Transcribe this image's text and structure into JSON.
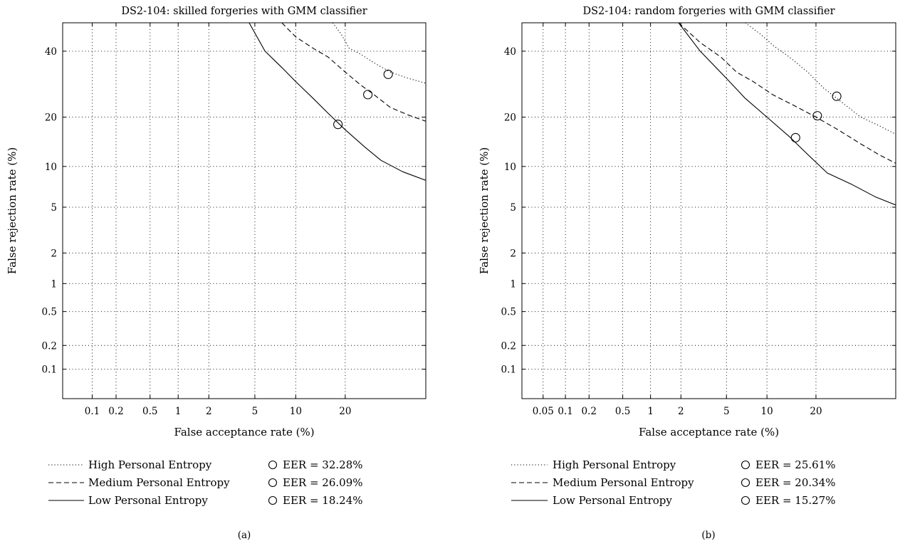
{
  "chart_data": [
    {
      "type": "line",
      "panel_label": "(a)",
      "title": "DS2-104: skilled forgeries with GMM classifier",
      "xlabel": "False acceptance rate (%)",
      "ylabel": "False rejection rate (%)",
      "x_scale": "normal-deviate",
      "y_scale": "normal-deviate",
      "xlim": [
        0.04,
        45
      ],
      "ylim": [
        0.04,
        50
      ],
      "x_ticks": [
        0.1,
        0.2,
        0.5,
        1,
        2,
        5,
        10,
        20
      ],
      "x_tick_labels": [
        "0.1",
        "0.2",
        "0.5",
        "1",
        "2",
        "5",
        "10",
        "20"
      ],
      "y_ticks": [
        0.1,
        0.2,
        0.5,
        1,
        2,
        5,
        10,
        20,
        40
      ],
      "y_tick_labels": [
        "0.1",
        "0.2",
        "0.5",
        "1",
        "2",
        "5",
        "10",
        "20",
        "40"
      ],
      "grid": true,
      "legend_position": "bottom",
      "series": [
        {
          "name": "High Personal Entropy",
          "line_style": "dotted",
          "points": [
            [
              17,
              50
            ],
            [
              19,
              46
            ],
            [
              21,
              41
            ],
            [
              24,
              39
            ],
            [
              28,
              36
            ],
            [
              33,
              33
            ],
            [
              39,
              31
            ],
            [
              45,
              29.5
            ]
          ],
          "eer_label": "EER = 32.28%",
          "eer_point": [
            32.28,
            32.28
          ]
        },
        {
          "name": "Medium Personal Entropy",
          "line_style": "dashed",
          "points": [
            [
              8,
              50
            ],
            [
              10,
              45
            ],
            [
              13,
              41
            ],
            [
              16,
              38
            ],
            [
              20,
              33
            ],
            [
              24,
              29
            ],
            [
              28,
              26
            ],
            [
              33,
              22.5
            ],
            [
              39,
              20.5
            ],
            [
              45,
              19
            ]
          ],
          "eer_label": "EER = 26.09%",
          "eer_point": [
            26.09,
            26.09
          ]
        },
        {
          "name": "Low Personal Entropy",
          "line_style": "solid",
          "points": [
            [
              4.5,
              50
            ],
            [
              6,
              40
            ],
            [
              8,
              34.5
            ],
            [
              10,
              30
            ],
            [
              13,
              25
            ],
            [
              16,
              21
            ],
            [
              20,
              17
            ],
            [
              25,
              13.5
            ],
            [
              30,
              11
            ],
            [
              37,
              9.2
            ],
            [
              45,
              8
            ]
          ],
          "eer_label": "EER = 18.24%",
          "eer_point": [
            18.24,
            18.24
          ]
        }
      ]
    },
    {
      "type": "line",
      "panel_label": "(b)",
      "title": "DS2-104: random forgeries with GMM classifier",
      "xlabel": "False acceptance rate (%)",
      "ylabel": "False rejection rate (%)",
      "x_scale": "normal-deviate",
      "y_scale": "normal-deviate",
      "xlim": [
        0.025,
        45
      ],
      "ylim": [
        0.04,
        50
      ],
      "x_ticks": [
        0.05,
        0.1,
        0.2,
        0.5,
        1,
        2,
        5,
        10,
        20
      ],
      "x_tick_labels": [
        "0.05",
        "0.1",
        "0.2",
        "0.5",
        "1",
        "2",
        "5",
        "10",
        "20"
      ],
      "y_ticks": [
        0.1,
        0.2,
        0.5,
        1,
        2,
        5,
        10,
        20,
        40
      ],
      "y_tick_labels": [
        "0.1",
        "0.2",
        "0.5",
        "1",
        "2",
        "5",
        "10",
        "20",
        "40"
      ],
      "grid": true,
      "legend_position": "bottom",
      "series": [
        {
          "name": "High Personal Entropy",
          "line_style": "dotted",
          "points": [
            [
              7,
              50
            ],
            [
              9,
              46
            ],
            [
              11,
              42
            ],
            [
              14,
              38
            ],
            [
              18,
              33
            ],
            [
              22,
              28
            ],
            [
              27,
              24
            ],
            [
              33,
              20
            ],
            [
              39,
              18
            ],
            [
              45,
              16
            ]
          ],
          "eer_label": "EER = 25.61%",
          "eer_point": [
            25.61,
            25.61
          ]
        },
        {
          "name": "Medium Personal Entropy",
          "line_style": "dashed",
          "points": [
            [
              1.9,
              50
            ],
            [
              3,
              43
            ],
            [
              4.5,
              38
            ],
            [
              6,
              33
            ],
            [
              8,
              30
            ],
            [
              11,
              26
            ],
            [
              15,
              23
            ],
            [
              20,
              20
            ],
            [
              26,
              17
            ],
            [
              33,
              14
            ],
            [
              39,
              12
            ],
            [
              45,
              10.5
            ]
          ],
          "eer_label": "EER = 20.34%",
          "eer_point": [
            20.34,
            20.34
          ]
        },
        {
          "name": "Low Personal Entropy",
          "line_style": "solid",
          "points": [
            [
              1.9,
              50
            ],
            [
              3,
              40
            ],
            [
              5,
              31
            ],
            [
              7,
              25
            ],
            [
              10,
              20
            ],
            [
              14,
              15.5
            ],
            [
              18,
              12
            ],
            [
              23,
              9
            ],
            [
              30,
              7.5
            ],
            [
              38,
              6
            ],
            [
              45,
              5.2
            ]
          ],
          "eer_label": "EER = 15.27%",
          "eer_point": [
            15.27,
            15.27
          ]
        }
      ]
    }
  ]
}
